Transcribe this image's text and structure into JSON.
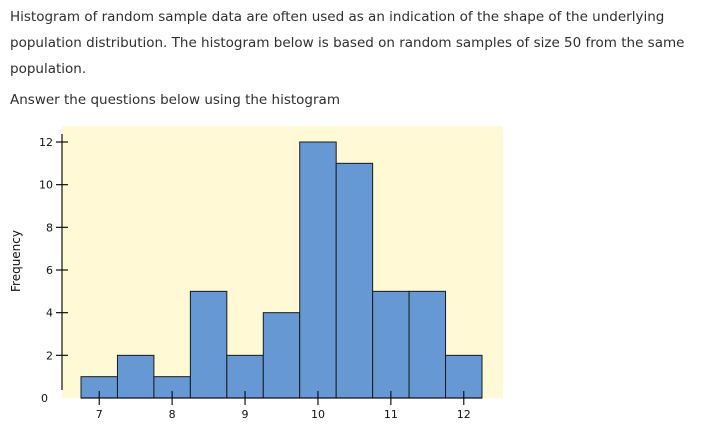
{
  "question": {
    "intro": "Histogram of random sample data are often used as an indication of the shape of the underlying population distribution. The histogram below is based on random samples of size 50 from the same population.",
    "prompt": "Answer the questions below using the histogram"
  },
  "chart_data": {
    "type": "bar",
    "title": "",
    "xlabel": "",
    "ylabel": "Frequency",
    "x_ticks": [
      7,
      8,
      9,
      10,
      11,
      12
    ],
    "y_ticks": [
      0,
      2,
      4,
      6,
      8,
      10,
      12
    ],
    "xlim": [
      6.75,
      12.25
    ],
    "ylim": [
      0,
      12
    ],
    "bin_width": 0.5,
    "bins": [
      {
        "start": 6.75,
        "end": 7.25,
        "value": 1
      },
      {
        "start": 7.25,
        "end": 7.75,
        "value": 2
      },
      {
        "start": 7.75,
        "end": 8.25,
        "value": 1
      },
      {
        "start": 8.25,
        "end": 8.75,
        "value": 5
      },
      {
        "start": 8.75,
        "end": 9.25,
        "value": 2
      },
      {
        "start": 9.25,
        "end": 9.75,
        "value": 4
      },
      {
        "start": 9.75,
        "end": 10.25,
        "value": 12
      },
      {
        "start": 10.25,
        "end": 10.75,
        "value": 11
      },
      {
        "start": 10.75,
        "end": 11.25,
        "value": 5
      },
      {
        "start": 11.25,
        "end": 11.75,
        "value": 5
      },
      {
        "start": 11.75,
        "end": 12.25,
        "value": 2
      }
    ],
    "colors": {
      "bar": "#6699d4",
      "bar_stroke": "#1a1a1a",
      "plot_background": "#fff9d6"
    },
    "grid": false,
    "legend": "none"
  }
}
